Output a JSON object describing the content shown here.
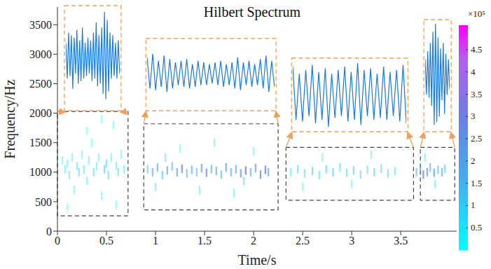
{
  "chart_data": {
    "type": "scatter",
    "title": "Hilbert Spectrum",
    "x_label": "Time/s",
    "y_label": "Frequency/Hz",
    "xlim": [
      0,
      4.07
    ],
    "xticks": [
      0,
      0.5,
      1,
      1.5,
      2,
      2.5,
      3,
      3.5
    ],
    "ylim": [
      0,
      3800
    ],
    "yticks": [
      0,
      500,
      1000,
      1500,
      2000,
      2500,
      3000,
      3500
    ],
    "grid": false,
    "points": [
      [
        0.05,
        1200,
        0.3
      ],
      [
        0.08,
        1050,
        0.5
      ],
      [
        0.1,
        1150,
        0.4
      ],
      [
        0.12,
        950,
        0.6
      ],
      [
        0.15,
        1250,
        0.3
      ],
      [
        0.17,
        700,
        0.2
      ],
      [
        0.2,
        1100,
        0.7
      ],
      [
        0.22,
        1000,
        0.9
      ],
      [
        0.25,
        1300,
        0.3
      ],
      [
        0.27,
        1050,
        0.6
      ],
      [
        0.3,
        850,
        0.4
      ],
      [
        0.32,
        1200,
        0.5
      ],
      [
        0.35,
        1500,
        0.2
      ],
      [
        0.37,
        1000,
        0.8
      ],
      [
        0.4,
        1100,
        0.6
      ],
      [
        0.42,
        1250,
        0.4
      ],
      [
        0.45,
        600,
        0.2
      ],
      [
        0.48,
        1050,
        1.2
      ],
      [
        0.5,
        1150,
        1.0
      ],
      [
        0.52,
        950,
        0.9
      ],
      [
        0.55,
        1250,
        0.5
      ],
      [
        0.57,
        1800,
        0.2
      ],
      [
        0.6,
        1100,
        0.6
      ],
      [
        0.62,
        1000,
        0.7
      ],
      [
        0.65,
        1300,
        0.4
      ],
      [
        0.68,
        1050,
        0.5
      ],
      [
        0.3,
        1700,
        0.15
      ],
      [
        0.45,
        1900,
        0.15
      ],
      [
        0.1,
        400,
        0.15
      ],
      [
        0.6,
        450,
        0.2
      ],
      [
        0.92,
        1050,
        1.2
      ],
      [
        0.97,
        1000,
        1.8
      ],
      [
        1.02,
        1080,
        2.0
      ],
      [
        1.07,
        950,
        1.5
      ],
      [
        1.12,
        1030,
        2.2
      ],
      [
        1.17,
        1100,
        1.6
      ],
      [
        1.22,
        1000,
        2.4
      ],
      [
        1.27,
        1060,
        2.9
      ],
      [
        1.32,
        980,
        1.7
      ],
      [
        1.37,
        1040,
        2.0
      ],
      [
        1.42,
        1000,
        1.5
      ],
      [
        1.47,
        1070,
        2.3
      ],
      [
        1.52,
        990,
        2.8
      ],
      [
        1.57,
        1050,
        1.8
      ],
      [
        1.62,
        1020,
        2.1
      ],
      [
        1.67,
        960,
        1.6
      ],
      [
        1.72,
        1080,
        2.4
      ],
      [
        1.77,
        1000,
        1.9
      ],
      [
        1.82,
        1050,
        2.2
      ],
      [
        1.87,
        980,
        2.6
      ],
      [
        1.92,
        1030,
        3.4
      ],
      [
        1.97,
        1000,
        2.0
      ],
      [
        2.02,
        1070,
        2.5
      ],
      [
        2.07,
        960,
        2.9
      ],
      [
        2.12,
        1040,
        3.2
      ],
      [
        2.15,
        1000,
        2.2
      ],
      [
        1.0,
        750,
        0.6
      ],
      [
        1.25,
        1400,
        0.4
      ],
      [
        1.45,
        700,
        0.5
      ],
      [
        1.6,
        1500,
        0.3
      ],
      [
        1.8,
        650,
        0.5
      ],
      [
        2.0,
        1350,
        0.4
      ],
      [
        1.1,
        1250,
        0.7
      ],
      [
        1.9,
        850,
        0.9
      ],
      [
        2.38,
        1000,
        0.8
      ],
      [
        2.45,
        1050,
        1.0
      ],
      [
        2.52,
        980,
        0.9
      ],
      [
        2.6,
        1020,
        1.2
      ],
      [
        2.67,
        950,
        0.8
      ],
      [
        2.74,
        1050,
        1.1
      ],
      [
        2.81,
        1000,
        1.3
      ],
      [
        2.88,
        1080,
        0.9
      ],
      [
        2.95,
        990,
        1.1
      ],
      [
        3.02,
        1030,
        1.2
      ],
      [
        3.09,
        960,
        0.9
      ],
      [
        3.16,
        1040,
        1.0
      ],
      [
        3.23,
        1000,
        1.2
      ],
      [
        3.3,
        1060,
        0.9
      ],
      [
        3.37,
        980,
        1.0
      ],
      [
        3.44,
        1020,
        0.8
      ],
      [
        2.7,
        1250,
        0.4
      ],
      [
        3.0,
        800,
        0.4
      ],
      [
        3.2,
        1300,
        0.3
      ],
      [
        2.5,
        750,
        0.3
      ],
      [
        3.66,
        1000,
        1.5
      ],
      [
        3.7,
        1050,
        2.2
      ],
      [
        3.73,
        960,
        3.0
      ],
      [
        3.77,
        1000,
        2.6
      ],
      [
        3.8,
        1080,
        1.8
      ],
      [
        3.84,
        990,
        2.3
      ],
      [
        3.88,
        1040,
        1.5
      ],
      [
        3.92,
        1000,
        2.0
      ],
      [
        3.95,
        1060,
        1.3
      ],
      [
        3.85,
        800,
        0.6
      ],
      [
        3.75,
        1250,
        0.5
      ]
    ],
    "colorbar": {
      "range": [
        0,
        5.05
      ],
      "ticks": [
        0.5,
        1,
        1.5,
        2,
        2.5,
        3,
        3.5,
        4,
        4.5
      ],
      "label": "×10⁵"
    },
    "regions": [
      {
        "x": [
          0,
          0.72
        ],
        "y": [
          260,
          2030
        ]
      },
      {
        "x": [
          0.88,
          2.25
        ],
        "y": [
          360,
          1820
        ]
      },
      {
        "x": [
          2.33,
          3.63
        ],
        "y": [
          525,
          1420
        ]
      },
      {
        "x": [
          3.7,
          4.05
        ],
        "y": [
          525,
          1420
        ]
      }
    ],
    "insets": {
      "ylim": [
        -1,
        1
      ],
      "series": [
        [
          0.3,
          -0.4,
          0.5,
          -0.35,
          0.45,
          -0.6,
          0.4,
          -0.3,
          0.55,
          -0.5,
          0.35,
          -0.45,
          0.6,
          -0.4,
          0.3,
          -0.35,
          0.4,
          -0.3,
          0.35,
          -0.45,
          0.5,
          -0.4,
          0.7,
          -0.55,
          0.45,
          -0.5,
          0.6,
          -0.7,
          0.9,
          -0.8,
          0.75,
          -0.65,
          0.5,
          -0.4,
          0.45,
          -0.35,
          0.3,
          -0.4,
          0.35,
          -0.3
        ],
        [
          0.5,
          -0.4,
          0.6,
          -0.45,
          0.4,
          -0.35,
          0.55,
          -0.5,
          0.45,
          -0.4,
          0.35,
          -0.3,
          0.4,
          -0.35,
          0.45,
          -0.4,
          0.3,
          -0.35,
          0.4,
          -0.3,
          0.35,
          -0.3,
          0.3,
          -0.25,
          0.35,
          -0.3,
          0.4,
          -0.35,
          0.3,
          -0.3,
          0.35,
          -0.4,
          0.5,
          -0.45,
          0.35,
          -0.3,
          0.4,
          -0.35,
          0.3,
          -0.3,
          0.45,
          -0.4,
          0.55,
          -0.5,
          0.4,
          -0.35
        ],
        [
          0.8,
          -0.7,
          0.6,
          -0.75,
          0.7,
          -0.6,
          0.85,
          -0.8,
          0.65,
          -0.7,
          0.75,
          -0.9,
          0.6,
          -0.65,
          0.7,
          -0.6,
          0.8,
          -0.75,
          0.65,
          -0.7,
          0.9,
          -0.85,
          0.7,
          -0.6,
          0.75,
          -0.7,
          0.6,
          -0.65,
          0.8,
          -0.7,
          0.65,
          -0.6,
          0.7,
          -0.75,
          0.85,
          -0.8
        ],
        [
          0.3,
          -0.35,
          0.45,
          -0.4,
          0.6,
          -0.55,
          0.8,
          -0.9,
          0.95,
          -0.85,
          0.7,
          -0.75,
          0.5,
          -0.45,
          0.6,
          -0.7,
          0.4,
          -0.35,
          0.3,
          -0.25
        ]
      ]
    }
  }
}
